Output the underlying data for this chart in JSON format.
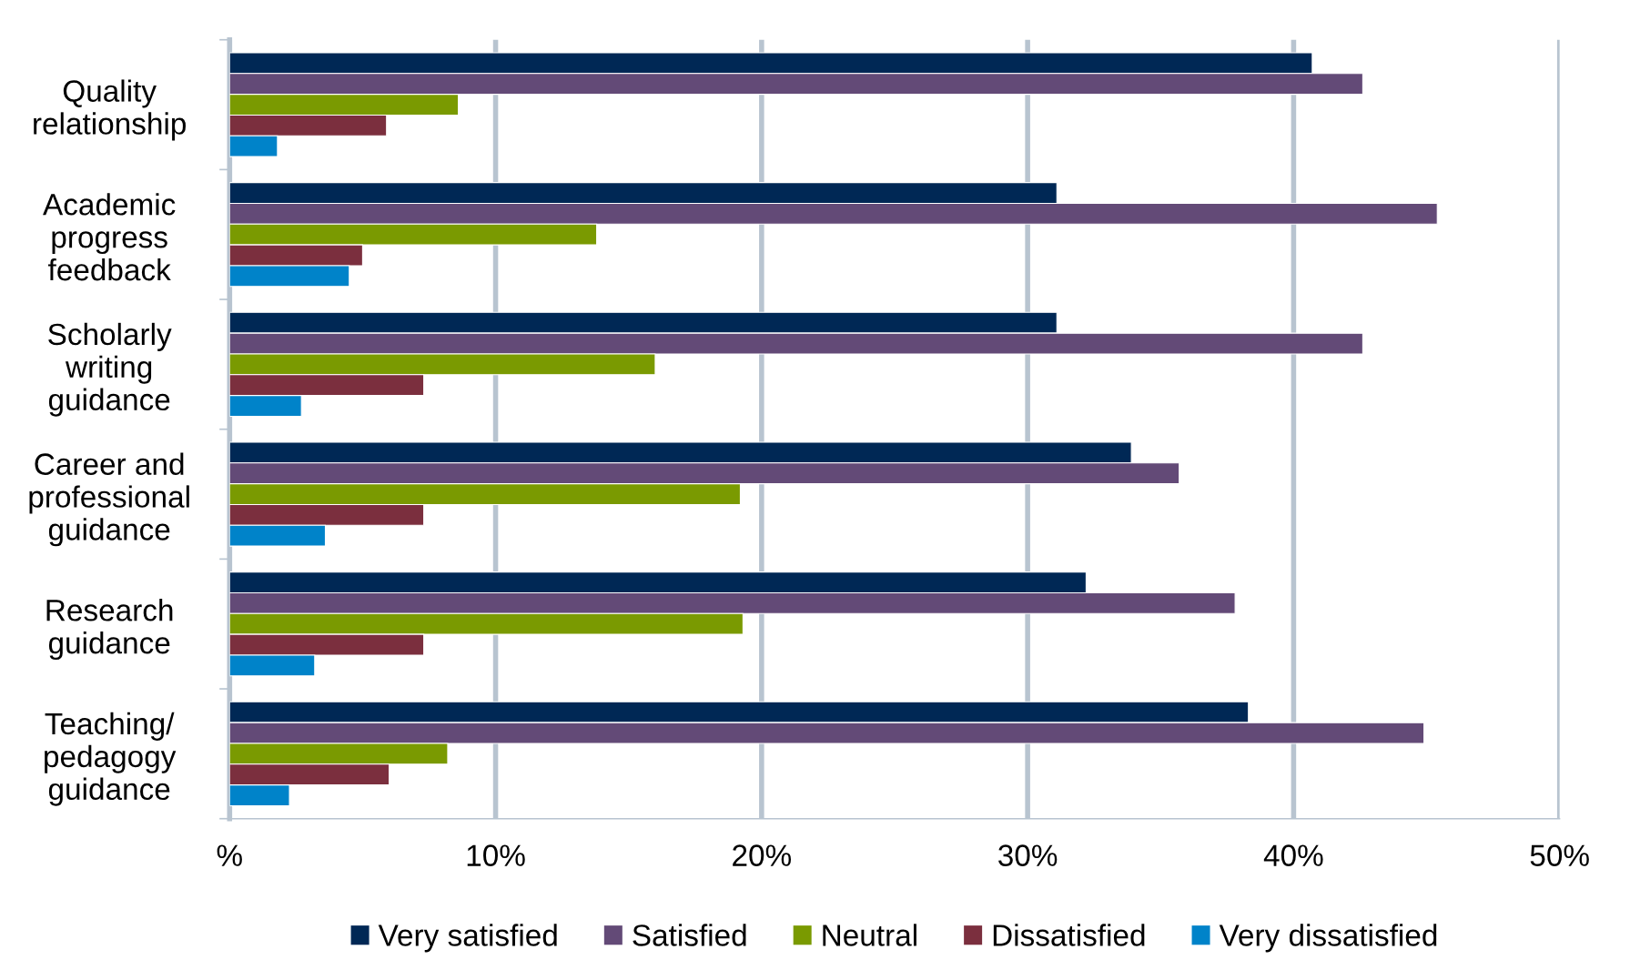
{
  "chart_data": {
    "type": "bar",
    "orientation": "horizontal",
    "categories": [
      "Quality\nrelationship",
      "Academic\nprogress\nfeedback",
      "Scholarly\nwriting\nguidance",
      "Career and\nprofessional\nguidance",
      "Research\nguidance",
      "Teaching/\npedagogy\nguidance"
    ],
    "series": [
      {
        "name": "Very satisfied",
        "color": "#002855",
        "values": [
          40.7,
          31.1,
          31.1,
          33.9,
          32.2,
          38.3
        ]
      },
      {
        "name": "Satisfied",
        "color": "#634a77",
        "values": [
          42.6,
          45.4,
          42.6,
          35.7,
          37.8,
          44.9
        ]
      },
      {
        "name": "Neutral",
        "color": "#7a9a01",
        "values": [
          8.6,
          13.8,
          16.0,
          19.2,
          19.3,
          8.2
        ]
      },
      {
        "name": "Dissatisfied",
        "color": "#7b2f3e",
        "values": [
          5.9,
          5.0,
          7.3,
          7.3,
          7.3,
          6.0
        ]
      },
      {
        "name": "Very dissatisfied",
        "color": "#0083c9",
        "values": [
          1.8,
          4.5,
          2.7,
          3.6,
          3.2,
          2.25
        ]
      }
    ],
    "xlim": [
      0,
      50
    ],
    "xticks": [
      {
        "value": 0,
        "label": "%"
      },
      {
        "value": 10,
        "label": "10%"
      },
      {
        "value": 20,
        "label": "20%"
      },
      {
        "value": 30,
        "label": "30%"
      },
      {
        "value": 40,
        "label": "40%"
      },
      {
        "value": 50,
        "label": "50%"
      }
    ],
    "grid": "x",
    "legend": "bottom"
  }
}
